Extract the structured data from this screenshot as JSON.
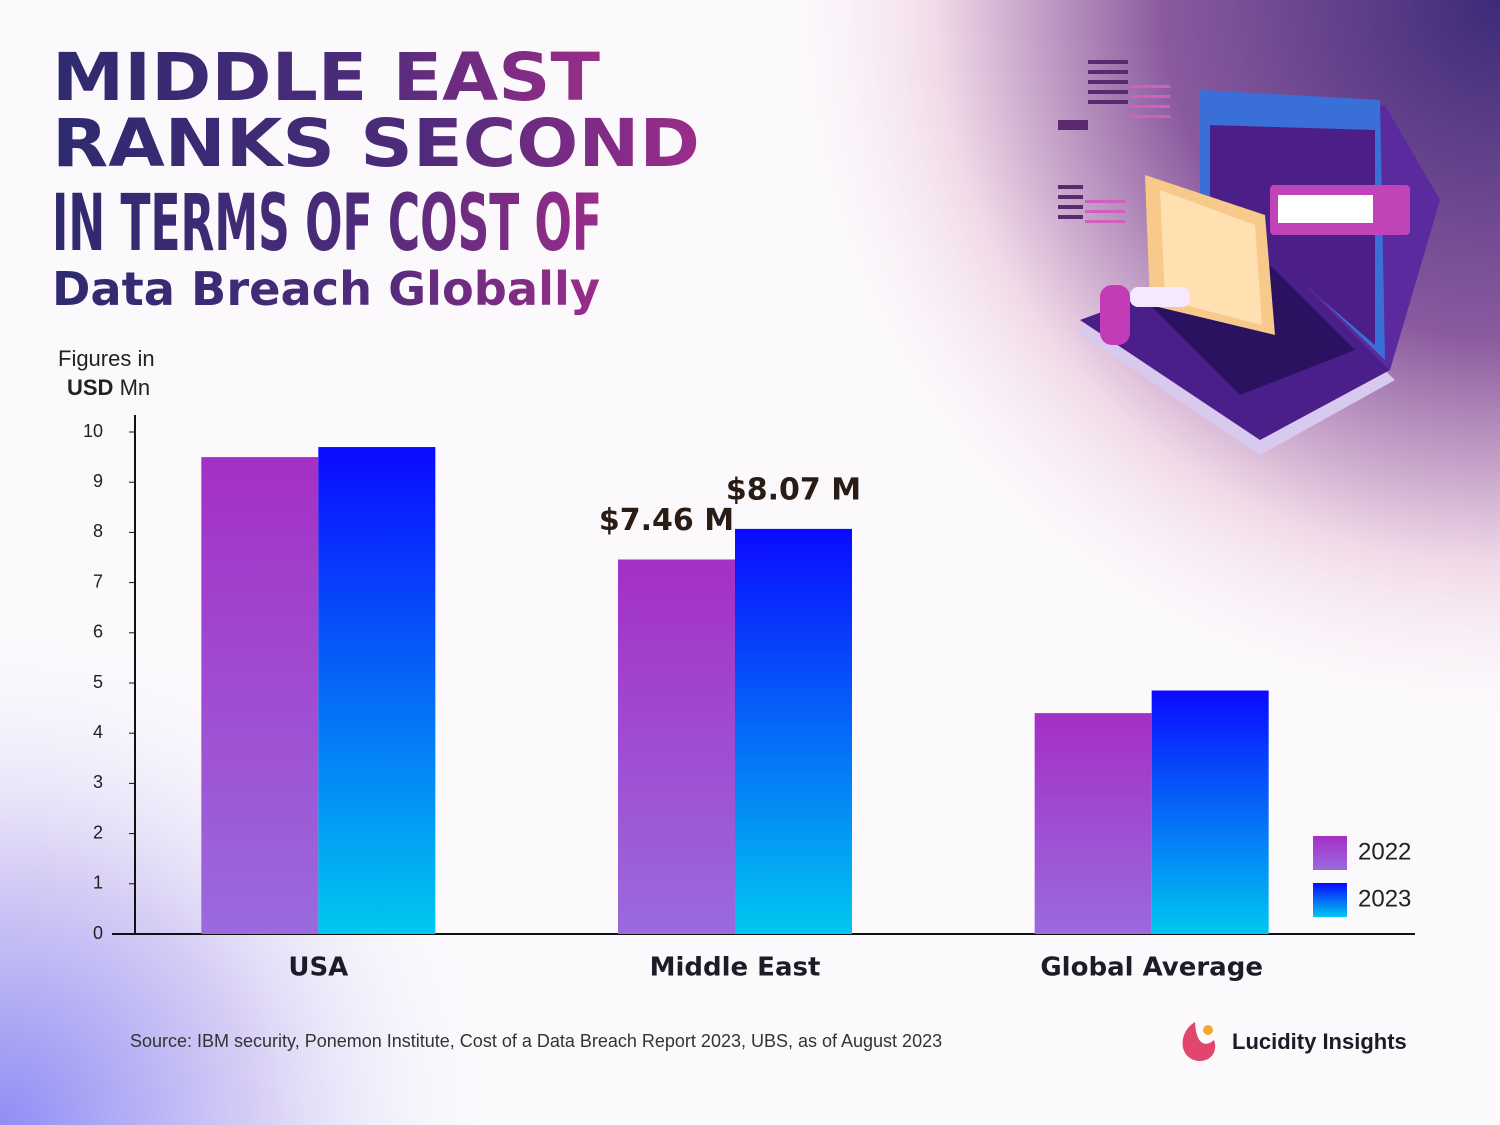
{
  "chart_data": {
    "type": "bar",
    "title_lines": [
      "MIDDLE EAST",
      "RANKS SECOND",
      "IN TERMS OF COST OF",
      "Data Breach Globally"
    ],
    "y_label": [
      "Figures in",
      "USD",
      "Mn"
    ],
    "categories": [
      "USA",
      "Middle East",
      "Global Average"
    ],
    "series": [
      {
        "name": "2022",
        "color": "#a42fc6",
        "gradient_to": "#9a6ade",
        "values": [
          9.5,
          7.46,
          4.4
        ],
        "value_labels": [
          null,
          "$7.46 M",
          null
        ]
      },
      {
        "name": "2023",
        "color": "#0a0aff",
        "gradient_to": "#00c8f0",
        "values": [
          9.7,
          8.07,
          4.85
        ],
        "value_labels": [
          null,
          "$8.07 M",
          null
        ]
      }
    ],
    "ylim": [
      0,
      10
    ],
    "yticks": [
      0,
      1,
      2,
      3,
      4,
      5,
      6,
      7,
      8,
      9,
      10
    ],
    "grid": false,
    "legend": "bottom-right",
    "source": "Source: IBM security, Ponemon Institute, Cost of a Data Breach Report 2023, UBS, as of August 2023",
    "brand": "Lucidity Insights"
  }
}
